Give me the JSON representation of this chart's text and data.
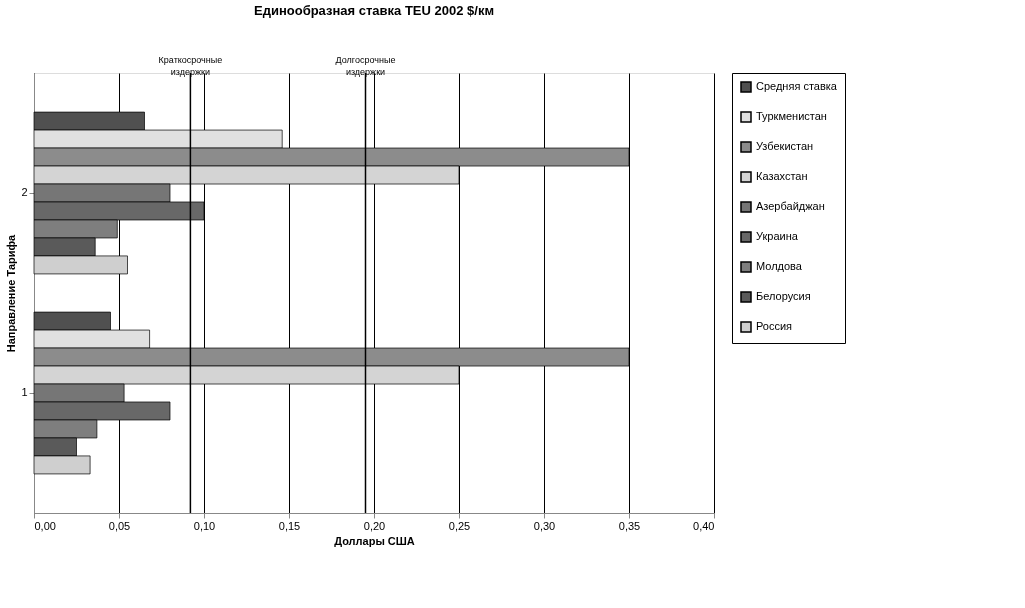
{
  "chart_data": {
    "type": "bar",
    "orientation": "horizontal",
    "title": "Единообразная ставка TEU 2002  $/км",
    "xlabel": "Доллары США",
    "ylabel": "Направление Тарифа",
    "categories": [
      "2",
      "1"
    ],
    "series": [
      {
        "name": "Средняя ставка",
        "color": "#505050",
        "values": [
          0.065,
          0.045
        ]
      },
      {
        "name": "Туркменистан",
        "color": "#e0e0e0",
        "values": [
          0.146,
          0.068
        ]
      },
      {
        "name": "Узбекистан",
        "color": "#8c8c8c",
        "values": [
          0.35,
          0.35
        ]
      },
      {
        "name": "Казахстан",
        "color": "#d4d4d4",
        "values": [
          0.25,
          0.25
        ]
      },
      {
        "name": "Азербайджан",
        "color": "#767676",
        "values": [
          0.08,
          0.053
        ]
      },
      {
        "name": "Украина",
        "color": "#686868",
        "values": [
          0.1,
          0.08
        ]
      },
      {
        "name": "Молдова",
        "color": "#7e7e7e",
        "values": [
          0.049,
          0.037
        ]
      },
      {
        "name": "Белорусия",
        "color": "#5a5a5a",
        "values": [
          0.036,
          0.025
        ]
      },
      {
        "name": "Россия",
        "color": "#cfcfcf",
        "values": [
          0.055,
          0.033
        ]
      }
    ],
    "xlim": [
      0,
      0.4
    ],
    "xticks": [
      {
        "value": 0,
        "label": "0,00"
      },
      {
        "value": 0.05,
        "label": "0,05"
      },
      {
        "value": 0.1,
        "label": "0,10"
      },
      {
        "value": 0.15,
        "label": "0,15"
      },
      {
        "value": 0.2,
        "label": "0,20"
      },
      {
        "value": 0.25,
        "label": "0,25"
      },
      {
        "value": 0.3,
        "label": "0,30"
      },
      {
        "value": 0.35,
        "label": "0,35"
      },
      {
        "value": 0.4,
        "label": "0,40"
      }
    ],
    "ref_lines": [
      {
        "axis": "x",
        "value": 0.092,
        "label": "Краткосрочные издержки",
        "color": "#000000"
      },
      {
        "axis": "x",
        "value": 0.195,
        "label": "Долгосрочные издержки",
        "color": "#000000"
      }
    ],
    "grid": "x",
    "legend": "right"
  }
}
